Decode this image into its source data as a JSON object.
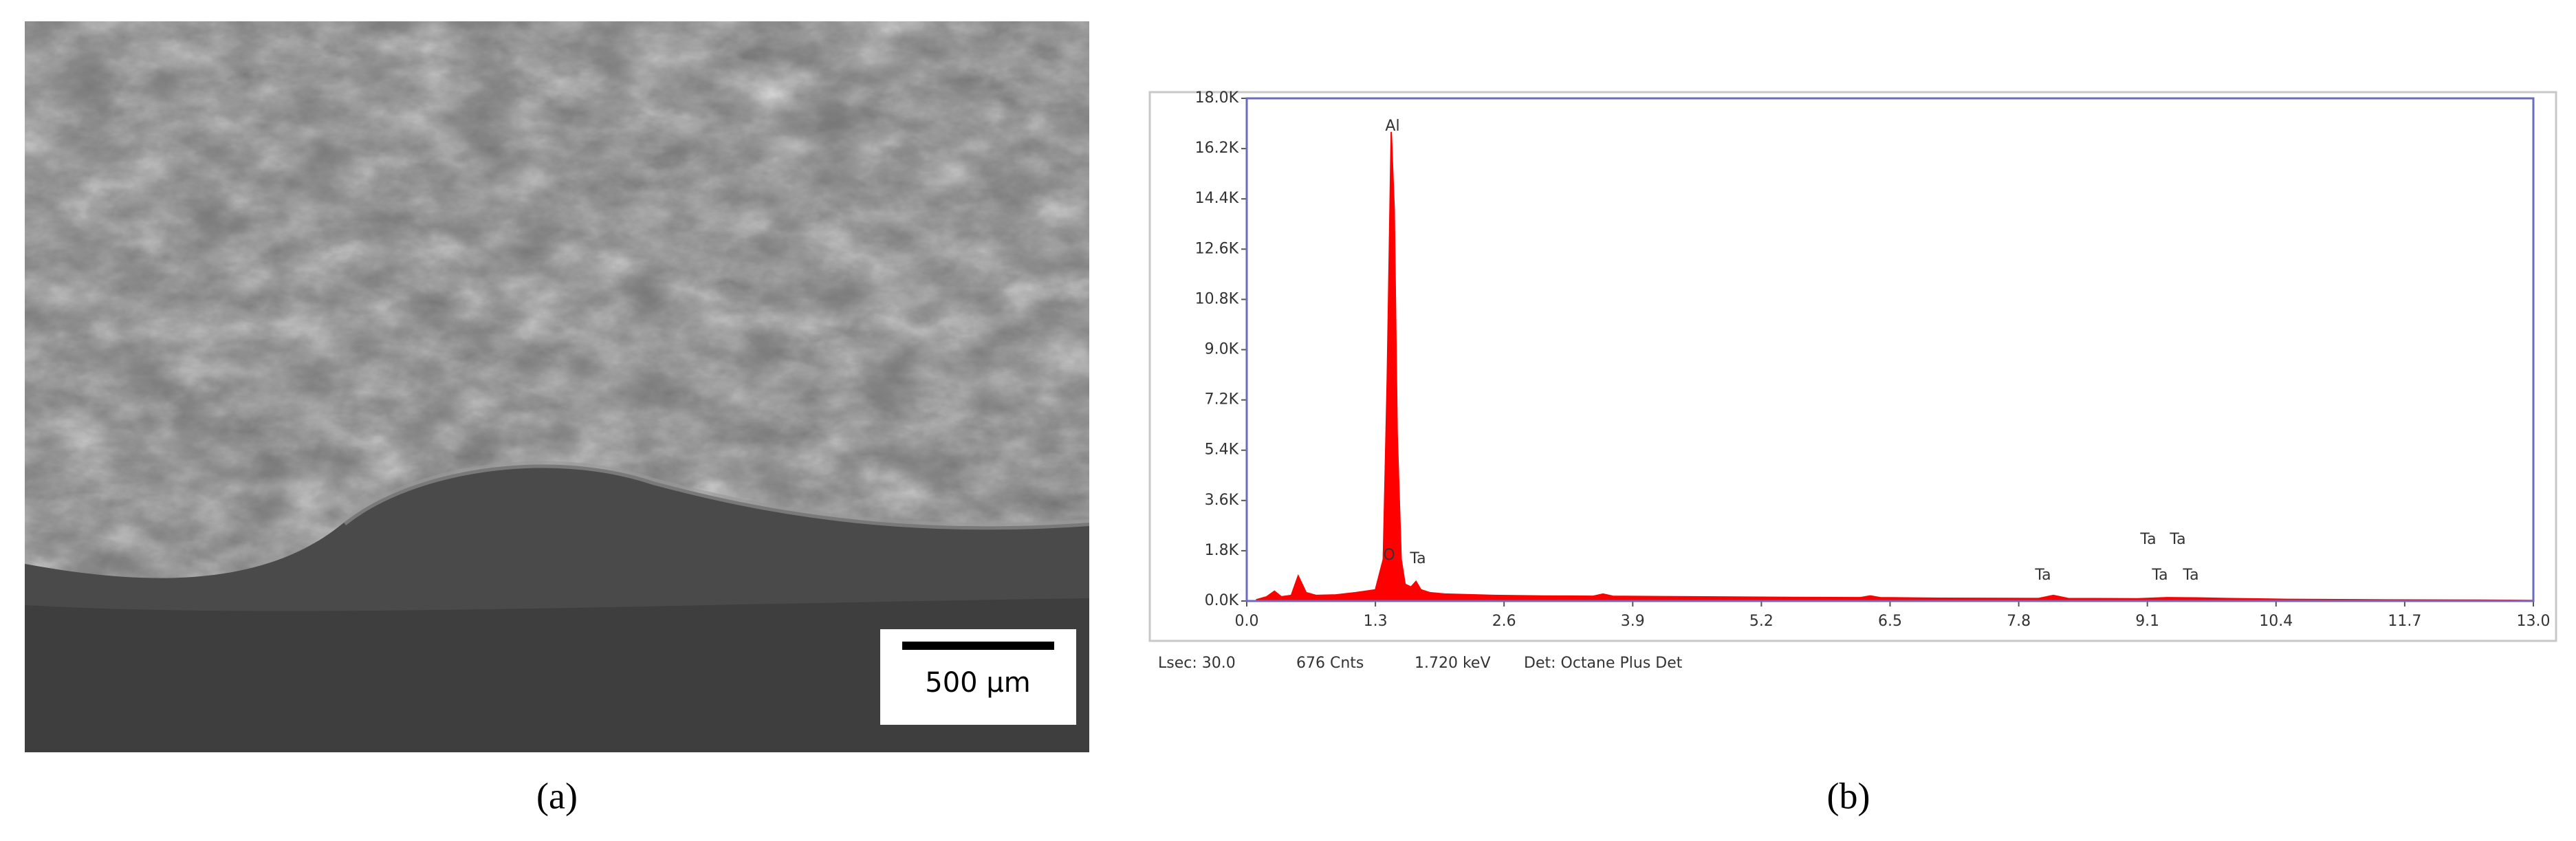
{
  "panel_a": {
    "scale_bar": "500 μm",
    "caption": "(a)"
  },
  "chart_data": {
    "type": "area",
    "caption": "(b)",
    "x": [
      0.1,
      0.2,
      0.28,
      0.35,
      0.45,
      0.52,
      0.6,
      0.7,
      0.9,
      1.1,
      1.3,
      1.38,
      1.42,
      1.46,
      1.49,
      1.52,
      1.56,
      1.6,
      1.66,
      1.71,
      1.76,
      1.85,
      2.0,
      2.5,
      3.0,
      3.5,
      3.6,
      3.7,
      4.5,
      5.5,
      6.2,
      6.3,
      6.4,
      7.0,
      8.0,
      8.15,
      8.3,
      9.0,
      9.3,
      9.6,
      9.9,
      10.5,
      11.5,
      12.5,
      13.0
    ],
    "series": [
      {
        "color": "#ff0000",
        "values": [
          50,
          150,
          350,
          150,
          200,
          900,
          300,
          200,
          220,
          300,
          400,
          1500,
          8000,
          16800,
          14000,
          6000,
          1500,
          600,
          500,
          700,
          400,
          300,
          250,
          200,
          180,
          170,
          250,
          170,
          150,
          130,
          120,
          180,
          120,
          100,
          90,
          200,
          90,
          80,
          120,
          110,
          90,
          60,
          40,
          30,
          20
        ]
      }
    ],
    "xlim": [
      0,
      13
    ],
    "xticks": [
      {
        "value": 0,
        "label": "0.0"
      },
      1.3,
      2.6,
      3.9,
      5.2,
      6.5,
      7.8,
      9.1,
      10.4,
      11.7,
      {
        "value": 13,
        "label": "13.0"
      }
    ],
    "ylim": [
      0,
      18000
    ],
    "yticks": [
      {
        "value": 0,
        "label": "0.0K"
      },
      {
        "value": 1800,
        "label": "1.8K"
      },
      {
        "value": 3600,
        "label": "3.6K"
      },
      {
        "value": 5400,
        "label": "5.4K"
      },
      {
        "value": 7200,
        "label": "7.2K"
      },
      {
        "value": 9000,
        "label": "9.0K"
      },
      {
        "value": 10800,
        "label": "10.8K"
      },
      {
        "value": 12600,
        "label": "12.6K"
      },
      {
        "value": 14400,
        "label": "14.4K"
      },
      {
        "value": 16200,
        "label": "16.2K"
      },
      {
        "value": 18000,
        "label": "18.0K"
      }
    ],
    "annotations": [
      "O",
      "Al",
      "Ta",
      "Ta",
      "Ta",
      "Ta",
      "Ta",
      "Ta"
    ],
    "footer": [
      "Lsec: 30.0",
      "676 Cnts",
      "1.720 keV",
      "Det: Octane Plus Det"
    ]
  }
}
